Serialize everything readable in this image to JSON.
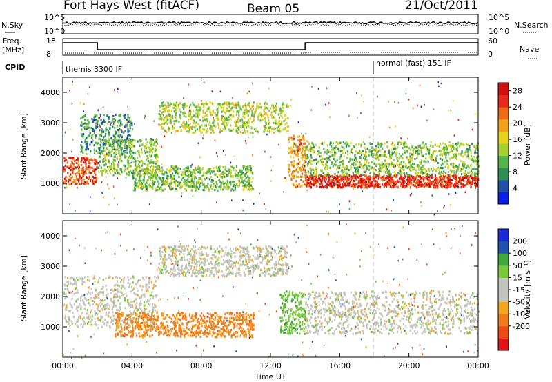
{
  "header": {
    "station": "Fort Hays West (fitACF)",
    "beam": "Beam 05",
    "date": "21/Oct/2011"
  },
  "strip_panels": {
    "noise_left_label": "N.Sky",
    "noise_right_label": "N.Search",
    "noise_tick_top": "10^5",
    "noise_tick_bottom": "10^0",
    "freq_left_label": "Freq.",
    "freq_unit": "[MHz]",
    "freq_tick_top": "18",
    "freq_tick_bottom": "8",
    "nave_label": "Nave",
    "nave_tick_top": "60",
    "nave_tick_bottom": "0",
    "cpid_label": "CPID",
    "cpid_1": "themis 3300 IF",
    "cpid_2": "normal (fast) 151 IF"
  },
  "colors": {
    "power": [
      "#0b1de6",
      "#1f4fa8",
      "#2e8f55",
      "#55b548",
      "#a8cf2e",
      "#e8d21a",
      "#f2a21a",
      "#f06a16",
      "#e8281a",
      "#d40d0d"
    ],
    "velocity": [
      "#e01414",
      "#f04a14",
      "#f27a18",
      "#f2a61e",
      "#c4c4be",
      "#c4c4be",
      "#79c93a",
      "#3fa83a",
      "#2050b0",
      "#1a2ad8"
    ]
  },
  "chart_data": [
    {
      "type": "heatmap",
      "panel": "power",
      "xlabel": "Time UT",
      "ylabel": "Slant Range [km]",
      "xlim": [
        0,
        24
      ],
      "ylim": [
        0,
        4500
      ],
      "x_ticks": [
        "00:00",
        "04:00",
        "08:00",
        "12:00",
        "16:00",
        "20:00",
        "00:00"
      ],
      "y_ticks": [
        1000,
        2000,
        3000,
        4000
      ],
      "colorbar_label": "Power [dB]",
      "colorbar_ticks": [
        4,
        8,
        12,
        16,
        20,
        24,
        28
      ],
      "colorbar_range": [
        0,
        30
      ],
      "features": [
        {
          "t": [
            0.0,
            2.0
          ],
          "range": [
            1000,
            1900
          ],
          "level_db": 24
        },
        {
          "t": [
            1.0,
            4.0
          ],
          "range": [
            2000,
            3300
          ],
          "level_db": 8
        },
        {
          "t": [
            2.0,
            5.5
          ],
          "range": [
            1300,
            2500
          ],
          "level_db": 12
        },
        {
          "t": [
            5.5,
            13.0
          ],
          "range": [
            2700,
            3700
          ],
          "level_db": 14
        },
        {
          "t": [
            4.0,
            11.0
          ],
          "range": [
            800,
            1600
          ],
          "level_db": 12
        },
        {
          "t": [
            13.0,
            14.0
          ],
          "range": [
            900,
            2600
          ],
          "level_db": 20
        },
        {
          "t": [
            14.0,
            24.0
          ],
          "range": [
            900,
            1300
          ],
          "level_db": 26
        },
        {
          "t": [
            14.0,
            24.0
          ],
          "range": [
            1300,
            2400
          ],
          "level_db": 12
        }
      ]
    },
    {
      "type": "heatmap",
      "panel": "velocity",
      "xlabel": "Time UT",
      "ylabel": "Slant Range [km]",
      "xlim": [
        0,
        24
      ],
      "ylim": [
        0,
        4500
      ],
      "x_ticks": [
        "00:00",
        "04:00",
        "08:00",
        "12:00",
        "16:00",
        "20:00",
        "00:00"
      ],
      "y_ticks": [
        1000,
        2000,
        3000,
        4000
      ],
      "colorbar_label": "Velocity [m s⁻¹]",
      "colorbar_ticks": [
        200,
        100,
        50,
        15,
        -15,
        -50,
        -100,
        -200
      ],
      "features": [
        {
          "t": [
            0.0,
            5.5
          ],
          "range": [
            1000,
            2700
          ],
          "velocity": 0
        },
        {
          "t": [
            5.5,
            13.0
          ],
          "range": [
            2700,
            3700
          ],
          "velocity": 0
        },
        {
          "t": [
            3.0,
            11.0
          ],
          "range": [
            700,
            1500
          ],
          "velocity": -60
        },
        {
          "t": [
            12.5,
            14.0
          ],
          "range": [
            800,
            2200
          ],
          "velocity": 40
        },
        {
          "t": [
            14.0,
            24.0
          ],
          "range": [
            800,
            2200
          ],
          "velocity": 0
        }
      ]
    }
  ]
}
